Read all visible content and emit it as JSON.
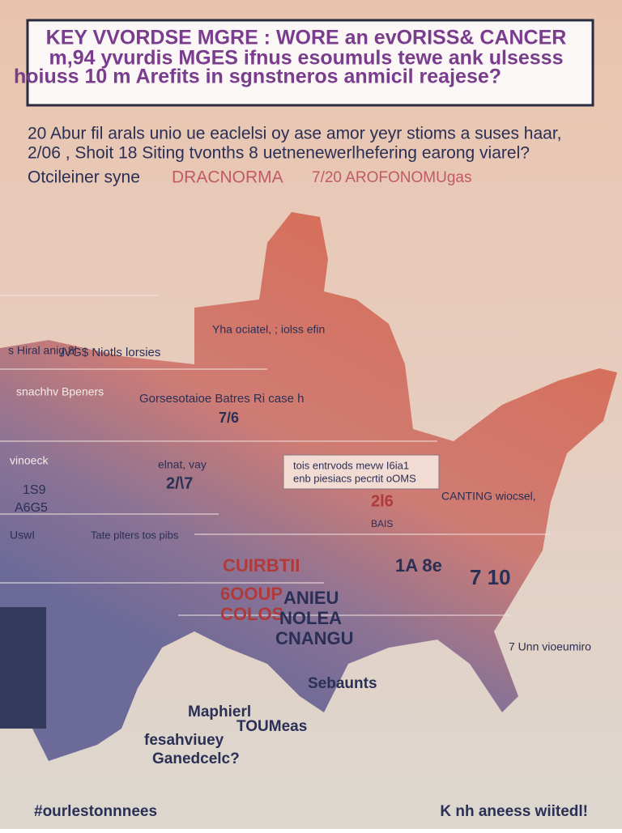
{
  "header": {
    "title_lines": [
      "KEY VVORDSE MGRE : WORE an evORISS& CANCER",
      "m,94 yvurdis MGES ifnus  esoumuls  tewe ank ulsesss",
      "hoiuss 10 m Arefits  in sgnstneros anmicil reajese?"
    ]
  },
  "intro": {
    "lines": [
      "20 Abur fil arals unio ue eaclelsi oy ase amor yeyr stioms a suses haar,",
      "2/06 ,  Shoit 18 Siting tvonths 8 uetnenewerlhefering earong viarel?",
      "Otcileiner syne",
      "DRACNORMA",
      "7/20 AROFONOMUgas"
    ]
  },
  "map": {
    "labels": [
      {
        "text": "Yha ociatel, ; iolss efin"
      },
      {
        "text": "s Hiral anig.8l"
      },
      {
        "text": "/VG$ Niotls lorsies"
      },
      {
        "text": "snachhv Bpeners"
      },
      {
        "text": "Gorsesotaioe Batres  Ri case h"
      },
      {
        "text": "7/6"
      },
      {
        "text": "vinoeck"
      },
      {
        "text": "elnat, vay"
      },
      {
        "text": "2/\\7"
      },
      {
        "text": "tois entrvods mevw I6ia1"
      },
      {
        "text": "enb piesiacs  pecrtit oOMS"
      },
      {
        "text": "1S9"
      },
      {
        "text": "A6G5"
      },
      {
        "text": "2l6"
      },
      {
        "text": "CANTING wiocsel,"
      },
      {
        "text": "Tate plters tos pibs"
      },
      {
        "text": "BAIS"
      },
      {
        "text": "UswI"
      },
      {
        "text": "CUIRBTII"
      },
      {
        "text": "1A 8e"
      },
      {
        "text": "7 10"
      },
      {
        "text": "6OOUP"
      },
      {
        "text": "COLOS"
      },
      {
        "text": "ANIEU"
      },
      {
        "text": "NOLEA"
      },
      {
        "text": "CNANGU"
      },
      {
        "text": "7 Unn vioeumiro"
      },
      {
        "text": "Sebaunts"
      },
      {
        "text": "Maphierl"
      },
      {
        "text": "TOUMeas"
      },
      {
        "text": "fesahviuey"
      },
      {
        "text": "Ganedcelc?"
      }
    ]
  },
  "footer": {
    "left": "#ourlestonnnees",
    "right": "K nh aneess wiitedl!"
  }
}
